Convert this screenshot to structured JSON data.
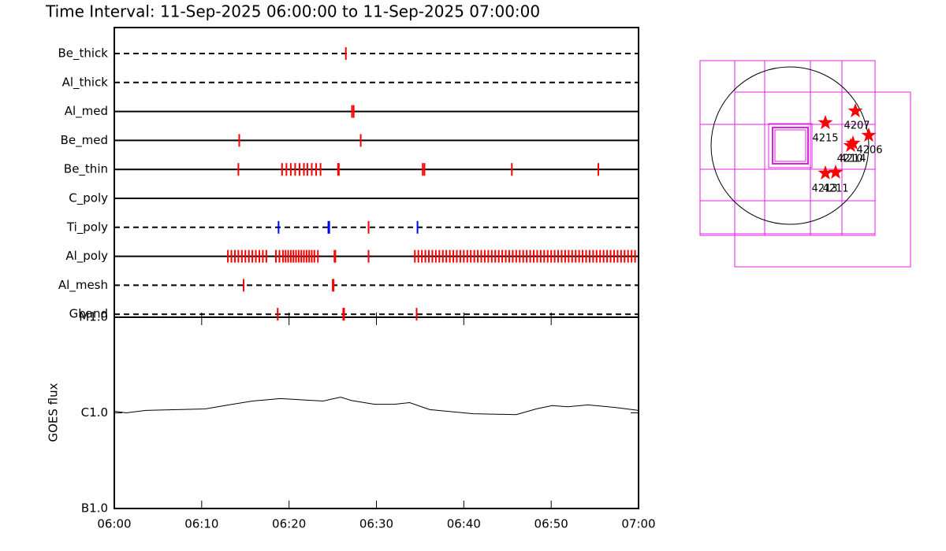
{
  "chart_data": [
    {
      "type": "event",
      "title": "Time Interval: 11-Sep-2025 06:00:00 to 11-Sep-2025 07:00:00",
      "xlim": [
        0,
        60
      ],
      "rows": [
        {
          "name": "Be_thick",
          "line": "dashed",
          "series": [
            {
              "color": "#ff0000",
              "x": [
                26.5
              ]
            }
          ]
        },
        {
          "name": "Al_thick",
          "line": "dashed",
          "series": []
        },
        {
          "name": "Al_med",
          "line": "solid",
          "series": [
            {
              "color": "#ff0000",
              "x": [
                27.2,
                27.4
              ]
            }
          ]
        },
        {
          "name": "Be_med",
          "line": "solid",
          "series": [
            {
              "color": "#ff0000",
              "x": [
                14.3,
                28.2
              ]
            }
          ]
        },
        {
          "name": "Be_thin",
          "line": "solid",
          "series": [
            {
              "color": "#ff0000",
              "x": [
                14.2,
                19.2,
                19.7,
                20.2,
                20.7,
                21.2,
                21.7,
                22.1,
                22.6,
                23.1,
                23.6,
                25.6,
                25.7,
                35.3,
                35.5,
                45.5,
                55.4
              ]
            }
          ]
        },
        {
          "name": "C_poly",
          "line": "solid",
          "series": []
        },
        {
          "name": "Ti_poly",
          "line": "dashed",
          "series": [
            {
              "color": "#ff0000",
              "x": [
                29.1
              ]
            },
            {
              "color": "#0000ff",
              "x": [
                18.8,
                24.5,
                24.6,
                34.7
              ]
            }
          ]
        },
        {
          "name": "Al_poly",
          "line": "solid",
          "series": [
            {
              "color": "#ff0000",
              "x": [
                13.0,
                13.4,
                13.8,
                14.2,
                14.6,
                15.0,
                15.4,
                15.8,
                16.2,
                16.6,
                17.0,
                17.4,
                18.5,
                18.9,
                19.3,
                19.6,
                19.9,
                20.2,
                20.5,
                20.8,
                21.1,
                21.4,
                21.7,
                22.0,
                22.3,
                22.6,
                22.9,
                23.3,
                25.2,
                25.3,
                29.1,
                34.4,
                34.8,
                35.2,
                35.6,
                36.0,
                36.4,
                36.8,
                37.2,
                37.6,
                38.0,
                38.4,
                38.8,
                39.2,
                39.6,
                40.0,
                40.4,
                40.8,
                41.2,
                41.6,
                42.0,
                42.4,
                42.8,
                43.2,
                43.6,
                44.0,
                44.4,
                44.8,
                45.2,
                45.6,
                46.0,
                46.4,
                46.8,
                47.2,
                47.6,
                48.0,
                48.4,
                48.8,
                49.2,
                49.6,
                50.0,
                50.4,
                50.8,
                51.2,
                51.6,
                52.0,
                52.4,
                52.8,
                53.2,
                53.6,
                54.0,
                54.4,
                54.8,
                55.2,
                55.6,
                56.0,
                56.4,
                56.8,
                57.2,
                57.6,
                58.0,
                58.4,
                58.8,
                59.2,
                59.6
              ]
            }
          ]
        },
        {
          "name": "Al_mesh",
          "line": "dashed",
          "series": [
            {
              "color": "#ff0000",
              "x": [
                14.8,
                25.0,
                25.1
              ]
            }
          ]
        },
        {
          "name": "Gband",
          "line": "dashed",
          "series": [
            {
              "color": "#ff0000",
              "x": [
                18.7,
                26.2,
                26.3,
                34.6
              ]
            }
          ]
        }
      ]
    },
    {
      "type": "line",
      "ylabel": "GOES flux",
      "log": true,
      "color": "#000000",
      "xlim": [
        0,
        60
      ],
      "xticks": [
        {
          "value": 0,
          "label": "06:00"
        },
        {
          "value": 10,
          "label": "06:10"
        },
        {
          "value": 20,
          "label": "06:20"
        },
        {
          "value": 30,
          "label": "06:30"
        },
        {
          "value": 40,
          "label": "06:40"
        },
        {
          "value": 50,
          "label": "06:50"
        },
        {
          "value": 60,
          "label": "07:00"
        }
      ],
      "ylim": [
        1e-07,
        1e-05
      ],
      "yticks": [
        {
          "value": 1e-07,
          "label": "B1.0"
        },
        {
          "value": 1e-06,
          "label": "C1.0"
        },
        {
          "value": 1e-05,
          "label": "M1.0"
        }
      ],
      "x": [
        0,
        1.35,
        3.6,
        10.4,
        13.1,
        15.8,
        19.0,
        23.9,
        25.9,
        27.1,
        29.8,
        32.05,
        33.8,
        36.1,
        41.1,
        46.0,
        48.3,
        50.1,
        51.9,
        54.2,
        57.3,
        60
      ],
      "values": [
        1.04e-06,
        1e-06,
        1.06e-06,
        1.1e-06,
        1.21e-06,
        1.33e-06,
        1.41e-06,
        1.33e-06,
        1.46e-06,
        1.35e-06,
        1.23e-06,
        1.23e-06,
        1.28e-06,
        1.08e-06,
        9.8e-07,
        9.6e-07,
        1.1e-06,
        1.19e-06,
        1.16e-06,
        1.21e-06,
        1.14e-06,
        1.06e-06
      ]
    }
  ],
  "map": {
    "regions": [
      "4207",
      "4215",
      "4206",
      "4214",
      "4210",
      "4213",
      "4211"
    ]
  }
}
